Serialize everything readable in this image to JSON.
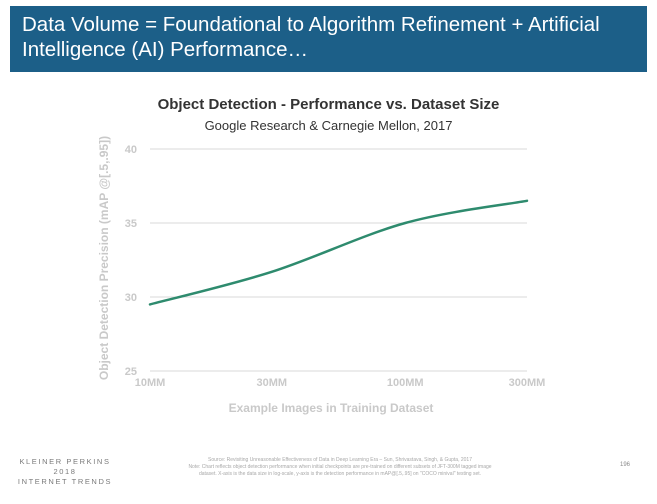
{
  "slide": {
    "title": "Data Volume = Foundational to Algorithm Refinement + Artificial Intelligence (AI) Performance…",
    "page_number": "196"
  },
  "footer": {
    "logo_line1": "KLEINER PERKINS",
    "logo_line2": "2018",
    "logo_line3": "INTERNET TRENDS",
    "source_line1": "Source: Revisiting Unreasonable Effectiveness of Data in Deep Learning Era – Sun, Shrivastava, Singh, & Gupta, 2017",
    "source_line2": "Note: Chart reflects object detection performance when initial checkpoints are pre-trained on different subsets of JFT-300M tagged image",
    "source_line3": "dataset. X-axis is the data size in log-scale, y-axis is the detection performance in mAP@[.5,.95] on \"COCO minival\" testing set."
  },
  "colors": {
    "header_band": "#1c5f88",
    "line": "#2e8b6e",
    "gridline": "#d9d9d9",
    "axis_text": "#c9c9c9"
  },
  "chart_data": {
    "type": "line",
    "title": "Object Detection - Performance vs. Dataset Size",
    "subtitle": "Google Research & Carnegie Mellon, 2017",
    "xlabel": "Example Images in Training Dataset",
    "ylabel": "Object Detection Precision (mAP @[.5,.95])",
    "x_scale": "log",
    "x_ticks": [
      10,
      30,
      100,
      300
    ],
    "x_tick_labels": [
      "10MM",
      "30MM",
      "100MM",
      "300MM"
    ],
    "ylim": [
      25,
      40
    ],
    "y_ticks": [
      25,
      30,
      35,
      40
    ],
    "grid": "horizontal",
    "series": [
      {
        "x": [
          10,
          30,
          100,
          300
        ],
        "values": [
          29.5,
          31.7,
          35.0,
          36.5
        ]
      }
    ]
  }
}
